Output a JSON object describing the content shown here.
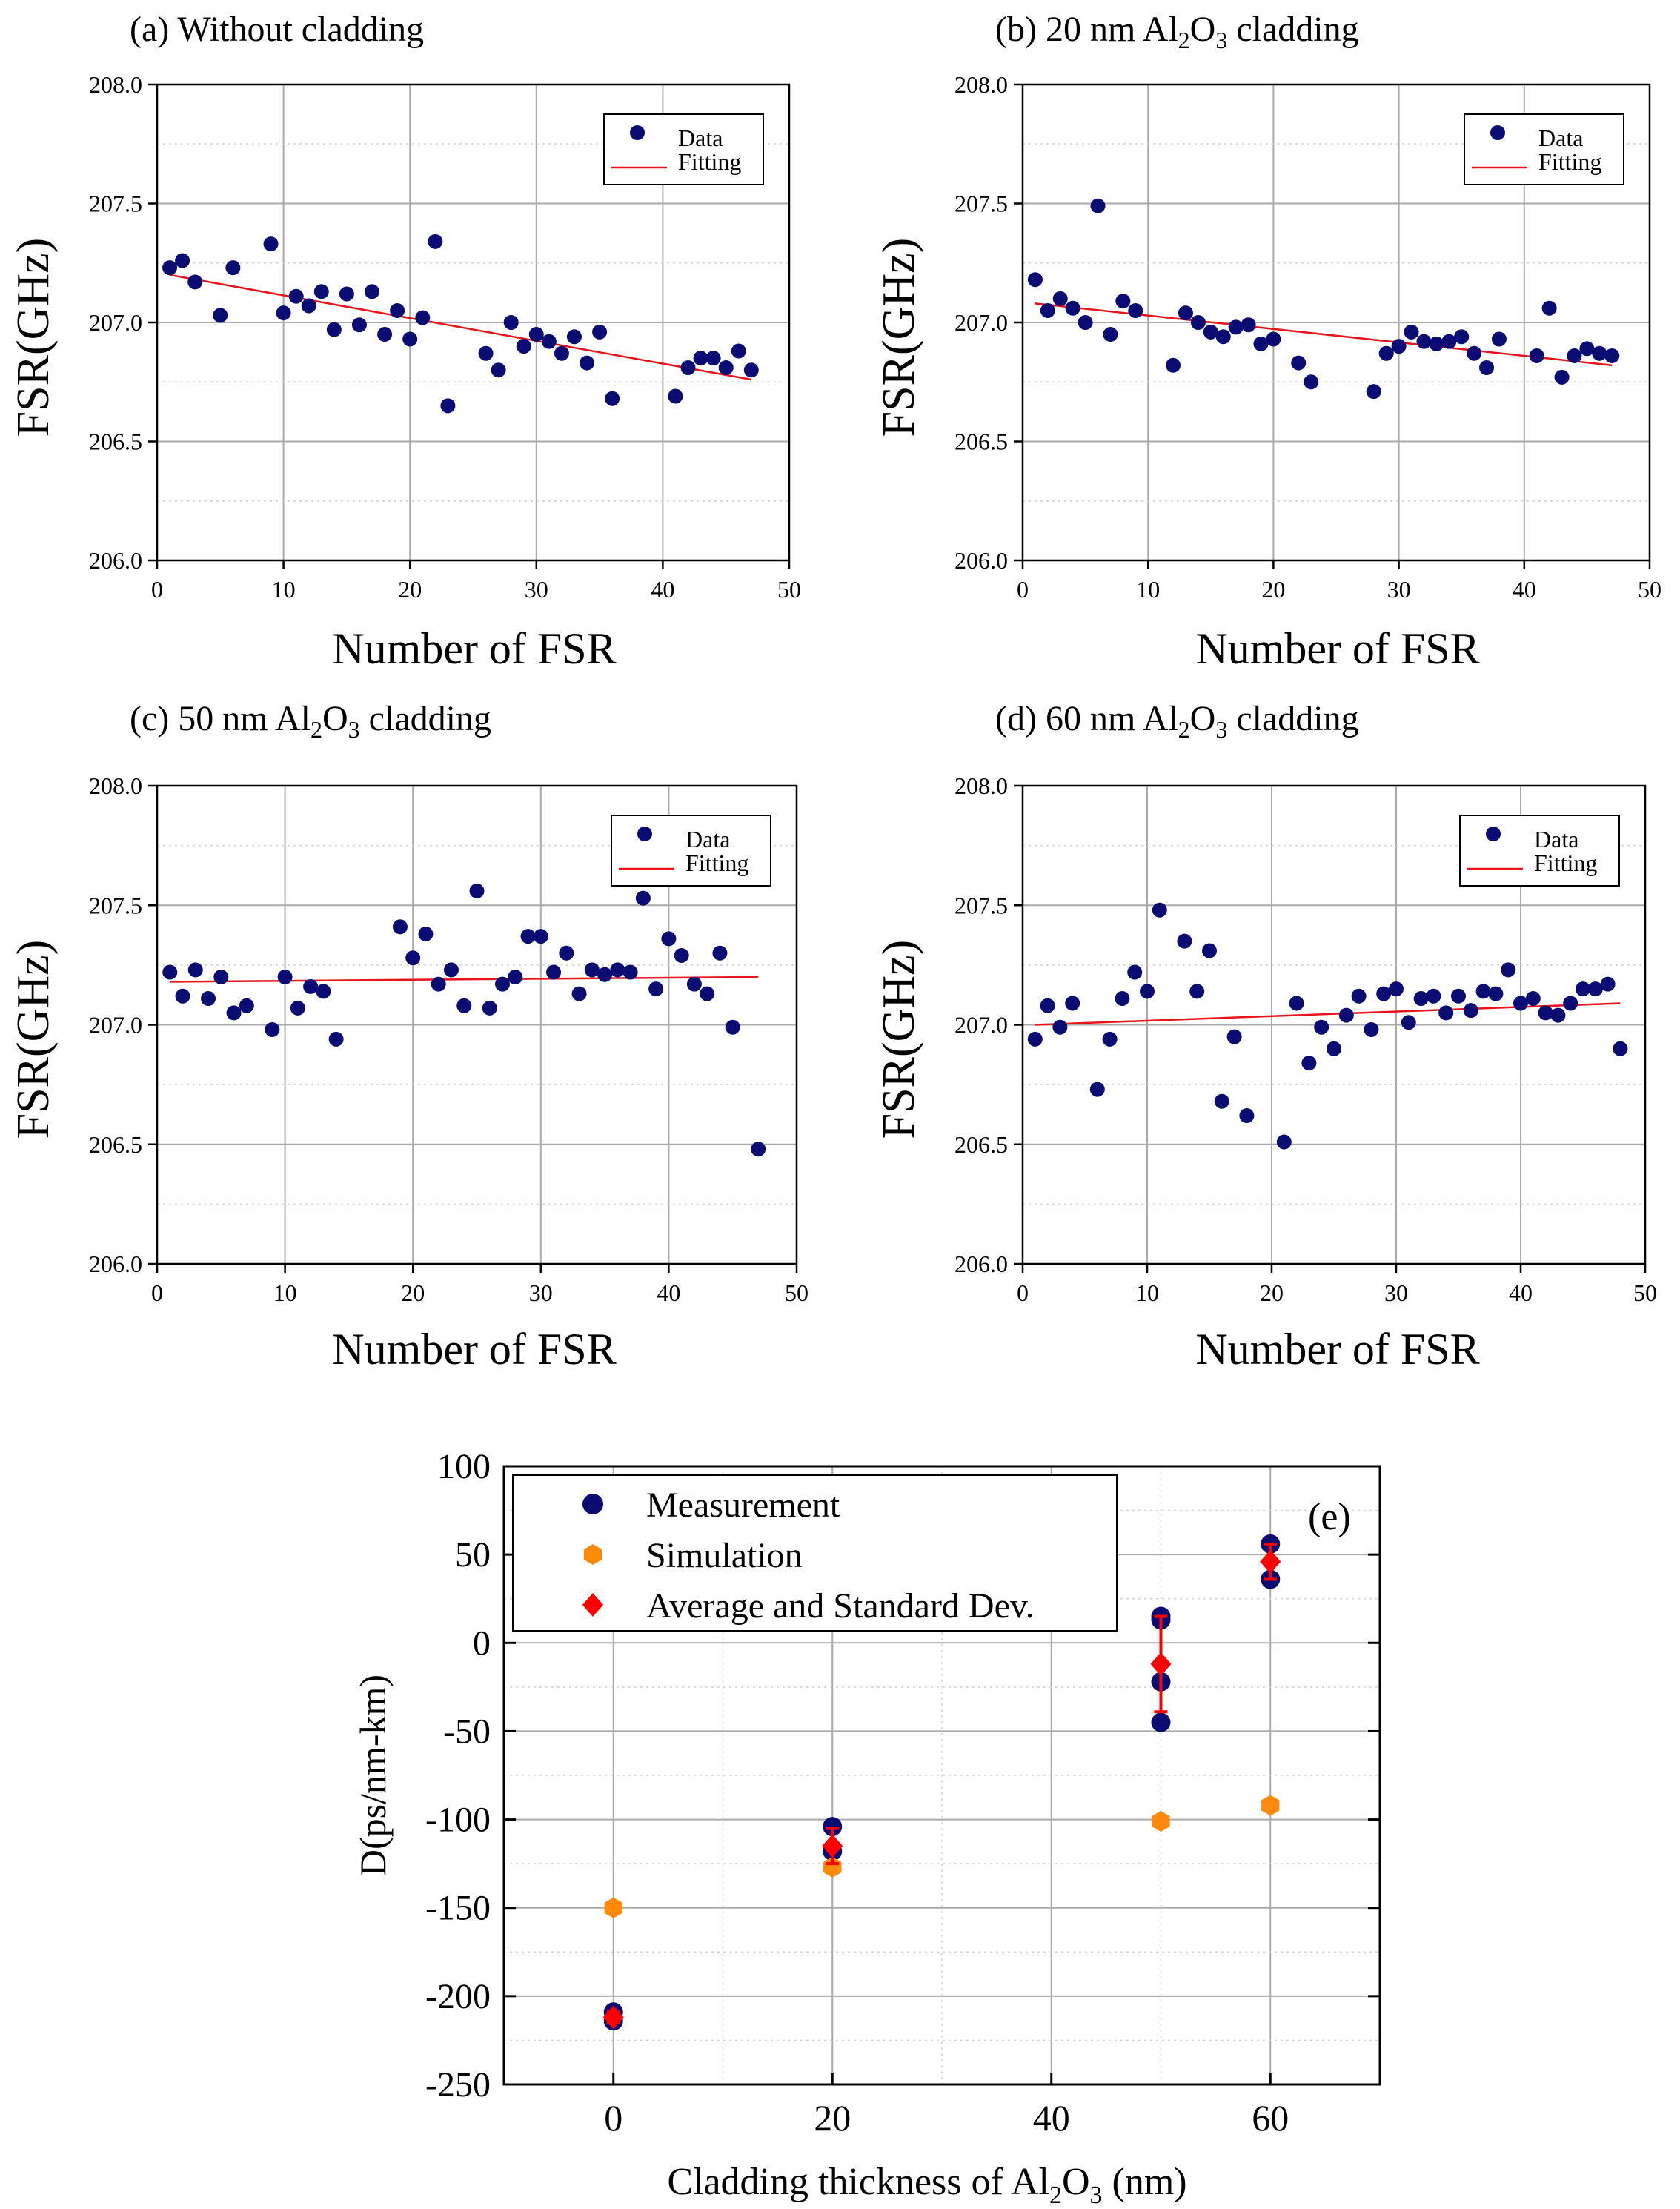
{
  "chart_data": [
    {
      "id": "a",
      "type": "scatter",
      "title_prefix": "(a)",
      "title_main": "Without cladding",
      "title_al2o3": false,
      "xlabel": "Number of FSR",
      "ylabel": "FSR(GHz)",
      "xlim": [
        0,
        50
      ],
      "ylim": [
        206.0,
        208.0
      ],
      "xticks": [
        0,
        10,
        20,
        30,
        40,
        50
      ],
      "yticks": [
        "206.0",
        "206.5",
        "207.0",
        "207.5",
        "208.0"
      ],
      "legend": [
        "Data",
        "Fitting"
      ],
      "legend_position": "top-right",
      "series": [
        {
          "name": "Data",
          "x": [
            1,
            2,
            3,
            5,
            6,
            9,
            10,
            11,
            12,
            13,
            14,
            15,
            16,
            17,
            18,
            19,
            20,
            21,
            22,
            23,
            26,
            27,
            28,
            29,
            30,
            31,
            32,
            33,
            34,
            35,
            36,
            41,
            42,
            43,
            44,
            45,
            46,
            47
          ],
          "y": [
            207.23,
            207.26,
            207.17,
            207.03,
            207.23,
            207.33,
            207.04,
            207.11,
            207.07,
            207.13,
            206.97,
            207.12,
            206.99,
            207.13,
            206.95,
            207.05,
            206.93,
            207.02,
            207.34,
            206.65,
            206.87,
            206.8,
            207.0,
            206.9,
            206.95,
            206.92,
            206.87,
            206.94,
            206.83,
            206.96,
            206.68,
            206.69,
            206.81,
            206.85,
            206.85,
            206.81,
            206.88,
            206.8
          ]
        },
        {
          "name": "Fitting",
          "x": [
            1,
            47
          ],
          "y": [
            207.2,
            206.76
          ]
        }
      ]
    },
    {
      "id": "b",
      "type": "scatter",
      "title_prefix": "(b)",
      "title_main": "20 nm",
      "title_al2o3": true,
      "xlabel": "Number of FSR",
      "ylabel": "FSR(GHz)",
      "xlim": [
        0,
        50
      ],
      "ylim": [
        206.0,
        208.0
      ],
      "xticks": [
        0,
        10,
        20,
        30,
        40,
        50
      ],
      "yticks": [
        "206.0",
        "206.5",
        "207.0",
        "207.5",
        "208.0"
      ],
      "legend": [
        "Data",
        "Fitting"
      ],
      "legend_position": "top-right",
      "series": [
        {
          "name": "Data",
          "x": [
            1,
            2,
            3,
            4,
            5,
            6,
            7,
            8,
            9,
            12,
            13,
            14,
            15,
            16,
            17,
            18,
            19,
            20,
            22,
            23,
            28,
            29,
            30,
            31,
            32,
            33,
            34,
            35,
            36,
            37,
            38,
            41,
            42,
            43,
            44,
            45,
            46,
            47
          ],
          "y": [
            207.18,
            207.05,
            207.1,
            207.06,
            207.0,
            207.49,
            206.95,
            207.09,
            207.05,
            206.82,
            207.04,
            207.0,
            206.96,
            206.94,
            206.98,
            206.99,
            206.91,
            206.93,
            206.83,
            206.75,
            206.71,
            206.87,
            206.9,
            206.96,
            206.92,
            206.91,
            206.92,
            206.94,
            206.87,
            206.81,
            206.93,
            206.86,
            207.06,
            206.77,
            206.86,
            206.89,
            206.87,
            206.86
          ]
        },
        {
          "name": "Fitting",
          "x": [
            1,
            47
          ],
          "y": [
            207.08,
            206.82
          ]
        }
      ]
    },
    {
      "id": "c",
      "type": "scatter",
      "title_prefix": "(c)",
      "title_main": "50 nm",
      "title_al2o3": true,
      "xlabel": "Number of FSR",
      "ylabel": "FSR(GHz)",
      "xlim": [
        0,
        50
      ],
      "ylim": [
        206.0,
        208.0
      ],
      "xticks": [
        0,
        10,
        20,
        30,
        40,
        50
      ],
      "yticks": [
        "206.0",
        "206.5",
        "207.0",
        "207.5",
        "208.0"
      ],
      "legend": [
        "Data",
        "Fitting"
      ],
      "legend_position": "top-right",
      "series": [
        {
          "name": "Data",
          "x": [
            1,
            2,
            3,
            4,
            5,
            6,
            7,
            9,
            10,
            11,
            12,
            13,
            14,
            19,
            20,
            21,
            22,
            23,
            24,
            25,
            26,
            27,
            28,
            29,
            30,
            31,
            32,
            33,
            34,
            35,
            36,
            37,
            38,
            39,
            40,
            41,
            42,
            43,
            44,
            45,
            47
          ],
          "y": [
            207.22,
            207.12,
            207.23,
            207.11,
            207.2,
            207.05,
            207.08,
            206.98,
            207.2,
            207.07,
            207.16,
            207.14,
            206.94,
            207.41,
            207.28,
            207.38,
            207.17,
            207.23,
            207.08,
            207.56,
            207.07,
            207.17,
            207.2,
            207.37,
            207.37,
            207.22,
            207.3,
            207.13,
            207.23,
            207.21,
            207.23,
            207.22,
            207.53,
            207.15,
            207.36,
            207.29,
            207.17,
            207.13,
            207.3,
            206.99,
            206.48
          ]
        },
        {
          "name": "Fitting",
          "x": [
            1,
            47
          ],
          "y": [
            207.18,
            207.2
          ]
        }
      ]
    },
    {
      "id": "d",
      "type": "scatter",
      "title_prefix": "(d)",
      "title_main": "60 nm",
      "title_al2o3": true,
      "xlabel": "Number of FSR",
      "ylabel": "FSR(GHz)",
      "xlim": [
        0,
        50
      ],
      "ylim": [
        206.0,
        208.0
      ],
      "xticks": [
        0,
        10,
        20,
        30,
        40,
        50
      ],
      "yticks": [
        "206.0",
        "206.5",
        "207.0",
        "207.5",
        "208.0"
      ],
      "legend": [
        "Data",
        "Fitting"
      ],
      "legend_position": "top-right",
      "series": [
        {
          "name": "Data",
          "x": [
            1,
            2,
            3,
            4,
            6,
            7,
            8,
            9,
            10,
            11,
            13,
            14,
            15,
            16,
            17,
            18,
            21,
            22,
            23,
            24,
            25,
            26,
            27,
            28,
            29,
            30,
            31,
            32,
            33,
            34,
            35,
            36,
            37,
            38,
            39,
            40,
            41,
            42,
            43,
            44,
            45,
            46,
            47,
            48
          ],
          "y": [
            206.94,
            207.08,
            206.99,
            207.09,
            206.73,
            206.94,
            207.11,
            207.22,
            207.14,
            207.48,
            207.35,
            207.14,
            207.31,
            206.68,
            206.95,
            206.62,
            206.51,
            207.09,
            206.84,
            206.99,
            206.9,
            207.04,
            207.12,
            206.98,
            207.13,
            207.15,
            207.01,
            207.11,
            207.12,
            207.05,
            207.12,
            207.06,
            207.14,
            207.13,
            207.23,
            207.09,
            207.11,
            207.05,
            207.04,
            207.09,
            207.15,
            207.15,
            207.17,
            206.9
          ]
        },
        {
          "name": "Fitting",
          "x": [
            1,
            48
          ],
          "y": [
            207.0,
            207.09
          ]
        }
      ]
    },
    {
      "id": "e",
      "type": "scatter",
      "panel_label": "(e)",
      "xlabel_prefix": "Cladding thickness of Al",
      "xlabel_suffix": "(nm)",
      "ylabel": "D(ps/nm-km)",
      "xlim": [
        -10,
        70
      ],
      "ylim": [
        -250,
        100
      ],
      "xticks": [
        0,
        20,
        40,
        60
      ],
      "yticks": [
        -250,
        -200,
        -150,
        -100,
        -50,
        0,
        50,
        100
      ],
      "legend": [
        "Measurement",
        "Simulation",
        "Average and Standard Dev."
      ],
      "legend_position": "top-left",
      "series": [
        {
          "name": "Measurement",
          "x": [
            0,
            0,
            20,
            20,
            50,
            50,
            50,
            50,
            60,
            60
          ],
          "y": [
            -209,
            -214,
            -104,
            -118,
            15,
            13,
            -22,
            -45,
            56,
            36
          ]
        },
        {
          "name": "Simulation",
          "x": [
            0,
            20,
            50,
            60
          ],
          "y": [
            -150,
            -127,
            -101,
            -92
          ]
        },
        {
          "name": "Average and Standard Dev.",
          "x": [
            0,
            20,
            50,
            60
          ],
          "y": [
            -212,
            -115,
            -12,
            46
          ],
          "err": [
            3,
            10,
            27,
            10
          ]
        }
      ]
    }
  ],
  "colors": {
    "data_marker": "#0b0b74",
    "fit_line": "#e8141a",
    "simulation": "#ff8a0a",
    "average": "#ff0000",
    "grid": "#aaaaaa"
  }
}
